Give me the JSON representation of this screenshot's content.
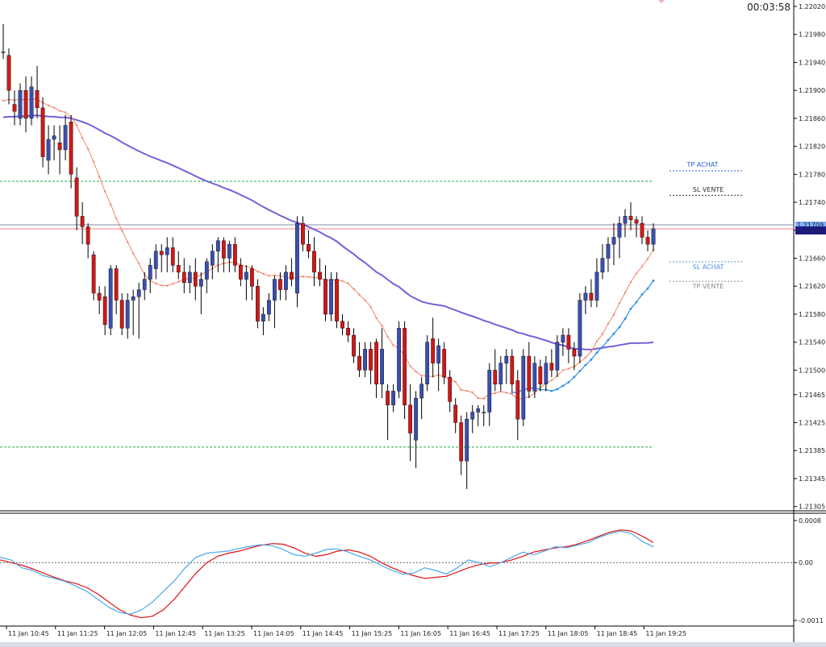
{
  "timer": "00:03:58",
  "current_price": "1.21702",
  "current_price_ghost": "1.21709",
  "levels": {
    "tp_achat": "TP ACHAT",
    "sl_vente": "SL VENTE",
    "sl_achat": "SL ACHAT",
    "tp_vente": "TP VENTE"
  },
  "colors": {
    "bull": "#3a4fb0",
    "bear": "#d01818",
    "sma_slow": "#7460d8",
    "sma_fast": "#f0876a",
    "sma_blue": "#2b8ee6",
    "green_dashed": "#22aa44",
    "price_line": "#f08080",
    "macd_main": "#e01010",
    "macd_signal": "#4aa8ee",
    "axis_tag": "#1a1a8a"
  },
  "chart_data": [
    {
      "type": "candlestick",
      "instrument_timeframe": "5 min",
      "y_ticks": [
        "1.22020",
        "1.21980",
        "1.21940",
        "1.21900",
        "1.21860",
        "1.21820",
        "1.21780",
        "1.21740",
        "1.21700",
        "1.21660",
        "1.21620",
        "1.21580",
        "1.21540",
        "1.21500",
        "1.21465",
        "1.21425",
        "1.21385",
        "1.21345",
        "1.21305"
      ],
      "ylim": [
        1.213,
        1.2202
      ],
      "x_labels": [
        "11 Jan 10:45",
        "11 Jan 11:25",
        "11 Jan 12:05",
        "11 Jan 12:45",
        "11 Jan 13:25",
        "11 Jan 14:05",
        "11 Jan 14:45",
        "11 Jan 15:25",
        "11 Jan 16:05",
        "11 Jan 16:45",
        "11 Jan 17:25",
        "11 Jan 18:05",
        "11 Jan 18:45",
        "11 Jan 19:25"
      ],
      "candles": [
        [
          1.21955,
          1.21995,
          1.21945,
          1.21955
        ],
        [
          1.2195,
          1.2196,
          1.2188,
          1.219
        ],
        [
          1.2188,
          1.219,
          1.2185,
          1.2187
        ],
        [
          1.2186,
          1.2191,
          1.2185,
          1.219
        ],
        [
          1.219,
          1.2192,
          1.2184,
          1.2186
        ],
        [
          1.2186,
          1.2192,
          1.2185,
          1.21905
        ],
        [
          1.219,
          1.21935,
          1.2186,
          1.21875
        ],
        [
          1.21875,
          1.2189,
          1.2179,
          1.21805
        ],
        [
          1.218,
          1.2185,
          1.2178,
          1.2183
        ],
        [
          1.2183,
          1.2185,
          1.218,
          1.21835
        ],
        [
          1.21825,
          1.2185,
          1.2178,
          1.21815
        ],
        [
          1.21815,
          1.21865,
          1.218,
          1.2185
        ],
        [
          1.21855,
          1.21865,
          1.2176,
          1.2178
        ],
        [
          1.21775,
          1.2179,
          1.217,
          1.2172
        ],
        [
          1.2172,
          1.2174,
          1.2168,
          1.21705
        ],
        [
          1.21705,
          1.2171,
          1.2166,
          1.2168
        ],
        [
          1.21665,
          1.2167,
          1.216,
          1.2161
        ],
        [
          1.2161,
          1.2162,
          1.2158,
          1.216
        ],
        [
          1.21605,
          1.2162,
          1.2155,
          1.21565
        ],
        [
          1.2156,
          1.2165,
          1.2155,
          1.21645
        ],
        [
          1.21645,
          1.2165,
          1.2158,
          1.216
        ],
        [
          1.216,
          1.2161,
          1.2155,
          1.2156
        ],
        [
          1.2156,
          1.2161,
          1.21545,
          1.216
        ],
        [
          1.216,
          1.21615,
          1.2155,
          1.21605
        ],
        [
          1.21605,
          1.21625,
          1.21545,
          1.21615
        ],
        [
          1.21615,
          1.2164,
          1.216,
          1.2163
        ],
        [
          1.2163,
          1.2166,
          1.2161,
          1.2165
        ],
        [
          1.21645,
          1.2168,
          1.2163,
          1.2167
        ],
        [
          1.2167,
          1.2168,
          1.2164,
          1.21665
        ],
        [
          1.21665,
          1.2169,
          1.2164,
          1.21675
        ],
        [
          1.21675,
          1.2169,
          1.2164,
          1.2165
        ],
        [
          1.2165,
          1.2167,
          1.2163,
          1.2164
        ],
        [
          1.2164,
          1.2166,
          1.2161,
          1.21625
        ],
        [
          1.21625,
          1.2165,
          1.2161,
          1.2164
        ],
        [
          1.2164,
          1.2166,
          1.216,
          1.2162
        ],
        [
          1.2162,
          1.2164,
          1.2158,
          1.2163
        ],
        [
          1.2163,
          1.2166,
          1.2161,
          1.21655
        ],
        [
          1.2165,
          1.2168,
          1.2163,
          1.2167
        ],
        [
          1.2167,
          1.2169,
          1.2164,
          1.21685
        ],
        [
          1.21685,
          1.2169,
          1.2164,
          1.2166
        ],
        [
          1.2166,
          1.21685,
          1.2164,
          1.2168
        ],
        [
          1.2168,
          1.2169,
          1.2164,
          1.2165
        ],
        [
          1.2165,
          1.2166,
          1.2162,
          1.2163
        ],
        [
          1.2163,
          1.2165,
          1.216,
          1.2164
        ],
        [
          1.21645,
          1.2165,
          1.216,
          1.2162
        ],
        [
          1.2162,
          1.2163,
          1.2156,
          1.2157
        ],
        [
          1.2157,
          1.2159,
          1.2155,
          1.2158
        ],
        [
          1.2158,
          1.2161,
          1.2157,
          1.216
        ],
        [
          1.216,
          1.21635,
          1.2156,
          1.2163
        ],
        [
          1.2163,
          1.2164,
          1.216,
          1.21615
        ],
        [
          1.21615,
          1.2165,
          1.216,
          1.2164
        ],
        [
          1.2164,
          1.2166,
          1.2162,
          1.2163
        ],
        [
          1.2161,
          1.2172,
          1.2159,
          1.2171
        ],
        [
          1.2171,
          1.2172,
          1.2167,
          1.2168
        ],
        [
          1.2168,
          1.217,
          1.2166,
          1.2167
        ],
        [
          1.2167,
          1.2169,
          1.2162,
          1.2164
        ],
        [
          1.2164,
          1.2166,
          1.2162,
          1.2163
        ],
        [
          1.2163,
          1.2165,
          1.2157,
          1.2158
        ],
        [
          1.2158,
          1.2164,
          1.2157,
          1.2163
        ],
        [
          1.2163,
          1.2164,
          1.2156,
          1.2157
        ],
        [
          1.2157,
          1.2158,
          1.2155,
          1.2156
        ],
        [
          1.2156,
          1.2157,
          1.2154,
          1.2155
        ],
        [
          1.2155,
          1.2156,
          1.2151,
          1.2152
        ],
        [
          1.2152,
          1.2154,
          1.2149,
          1.215
        ],
        [
          1.215,
          1.2154,
          1.2149,
          1.2153
        ],
        [
          1.2153,
          1.2154,
          1.2148,
          1.215
        ],
        [
          1.2154,
          1.21545,
          1.2146,
          1.2148
        ],
        [
          1.2148,
          1.2156,
          1.2146,
          1.2153
        ],
        [
          1.2147,
          1.2148,
          1.214,
          1.2145
        ],
        [
          1.2145,
          1.2148,
          1.2144,
          1.2147
        ],
        [
          1.2147,
          1.2157,
          1.2146,
          1.2156
        ],
        [
          1.2156,
          1.2157,
          1.2143,
          1.2145
        ],
        [
          1.2145,
          1.2148,
          1.2137,
          1.2141
        ],
        [
          1.214,
          1.2147,
          1.2136,
          1.2146
        ],
        [
          1.2146,
          1.2149,
          1.2143,
          1.2148
        ],
        [
          1.2148,
          1.2155,
          1.2147,
          1.2154
        ],
        [
          1.21545,
          1.21575,
          1.2149,
          1.2151
        ],
        [
          1.2151,
          1.21545,
          1.2147,
          1.21535
        ],
        [
          1.2153,
          1.2154,
          1.2148,
          1.2149
        ],
        [
          1.2149,
          1.215,
          1.2144,
          1.21455
        ],
        [
          1.2145,
          1.2146,
          1.2141,
          1.21425
        ],
        [
          1.21425,
          1.21435,
          1.2135,
          1.2137
        ],
        [
          1.2137,
          1.2144,
          1.2133,
          1.2143
        ],
        [
          1.2143,
          1.2145,
          1.2141,
          1.2144
        ],
        [
          1.2144,
          1.2145,
          1.2142,
          1.21445
        ],
        [
          1.2144,
          1.2145,
          1.2142,
          1.2144
        ],
        [
          1.2144,
          1.2151,
          1.2142,
          1.215
        ],
        [
          1.215,
          1.2153,
          1.2147,
          1.2148
        ],
        [
          1.2148,
          1.2152,
          1.2147,
          1.2151
        ],
        [
          1.2151,
          1.2153,
          1.2148,
          1.2152
        ],
        [
          1.2152,
          1.2153,
          1.2147,
          1.2148
        ],
        [
          1.21485,
          1.215,
          1.214,
          1.2143
        ],
        [
          1.2143,
          1.2153,
          1.2142,
          1.2152
        ],
        [
          1.2152,
          1.2154,
          1.2146,
          1.2147
        ],
        [
          1.2147,
          1.2152,
          1.2146,
          1.2151
        ],
        [
          1.21505,
          1.21515,
          1.2147,
          1.2148
        ],
        [
          1.2148,
          1.2152,
          1.2147,
          1.2151
        ],
        [
          1.2151,
          1.2153,
          1.2149,
          1.215
        ],
        [
          1.215,
          1.2155,
          1.2149,
          1.2154
        ],
        [
          1.2154,
          1.2156,
          1.2152,
          1.2155
        ],
        [
          1.2155,
          1.2156,
          1.2151,
          1.2153
        ],
        [
          1.2153,
          1.2154,
          1.215,
          1.2152
        ],
        [
          1.2152,
          1.2161,
          1.2151,
          1.216
        ],
        [
          1.216,
          1.2162,
          1.2158,
          1.2161
        ],
        [
          1.2161,
          1.2163,
          1.2159,
          1.216
        ],
        [
          1.216,
          1.2166,
          1.2159,
          1.2164
        ],
        [
          1.2164,
          1.2168,
          1.2163,
          1.2166
        ],
        [
          1.2166,
          1.2169,
          1.2164,
          1.2168
        ],
        [
          1.2168,
          1.2171,
          1.2165,
          1.2169
        ],
        [
          1.2169,
          1.2172,
          1.2166,
          1.2171
        ],
        [
          1.2171,
          1.2173,
          1.2169,
          1.2172
        ],
        [
          1.2172,
          1.2174,
          1.217,
          1.21715
        ],
        [
          1.21715,
          1.2172,
          1.2169,
          1.2171
        ],
        [
          1.2171,
          1.2172,
          1.2168,
          1.2169
        ],
        [
          1.2169,
          1.217,
          1.2167,
          1.2168
        ],
        [
          1.2168,
          1.2171,
          1.2167,
          1.21702
        ]
      ],
      "hlines": {
        "green_upper": 1.2177,
        "green_lower": 1.2139,
        "current_price": 1.21702,
        "tp_achat": 1.21785,
        "sl_vente": 1.2175,
        "sl_achat": 1.21655,
        "tp_vente": 1.21627
      }
    },
    {
      "type": "line",
      "indicator": "MACD",
      "y_ticks": [
        "0.0008",
        "0.00",
        "-0.0011"
      ],
      "ylim": [
        -0.0011,
        0.0008
      ],
      "zero_line": 0,
      "series": [
        {
          "color_key": "macd_main",
          "values": [
            5e-05,
            0.0,
            -5e-05,
            -0.00012,
            -0.0002,
            -0.00028,
            -0.00035,
            -0.0004,
            -0.00048,
            -0.0006,
            -0.00075,
            -0.0009,
            -0.001,
            -0.00105,
            -0.00102,
            -0.0009,
            -0.0007,
            -0.00045,
            -0.0002,
            0.0,
            0.00012,
            0.00018,
            0.00022,
            0.00028,
            0.00033,
            0.00036,
            0.00035,
            0.00028,
            0.00018,
            0.00012,
            0.00015,
            0.00022,
            0.00024,
            0.0002,
            0.00012,
            0.0,
            -0.0001,
            -0.00018,
            -0.00025,
            -0.0003,
            -0.00028,
            -0.00026,
            -0.00018,
            -0.0001,
            -4e-05,
            -1e-05,
            0.0,
            5e-05,
            0.00012,
            0.0002,
            0.00024,
            0.00028,
            0.0003,
            0.00035,
            0.00042,
            0.0005,
            0.00058,
            0.00062,
            0.0006,
            0.0005,
            0.00038
          ]
        },
        {
          "color_key": "macd_signal",
          "values": [
            0.0001,
            5e-05,
            -0.0001,
            -0.00015,
            -0.00025,
            -0.0003,
            -0.00036,
            -0.00045,
            -0.00055,
            -0.0007,
            -0.00085,
            -0.00095,
            -0.00098,
            -0.0009,
            -0.00075,
            -0.00055,
            -0.00035,
            -0.0001,
            0.0001,
            0.00018,
            0.0002,
            0.00022,
            0.00027,
            0.00031,
            0.00034,
            0.00032,
            0.00025,
            0.00015,
            0.00012,
            0.00018,
            0.00025,
            0.00026,
            0.0002,
            0.00012,
            5e-05,
            -5e-05,
            -0.00015,
            -0.00022,
            -0.0002,
            -0.0001,
            -0.00015,
            -0.00022,
            -0.0001,
            5e-05,
            0.0,
            -8e-05,
            0.0,
            0.0001,
            0.0002,
            0.00015,
            0.00022,
            0.0003,
            0.00028,
            0.00033,
            0.00038,
            0.00048,
            0.00055,
            0.0006,
            0.00055,
            0.0004,
            0.0003
          ]
        }
      ]
    }
  ]
}
